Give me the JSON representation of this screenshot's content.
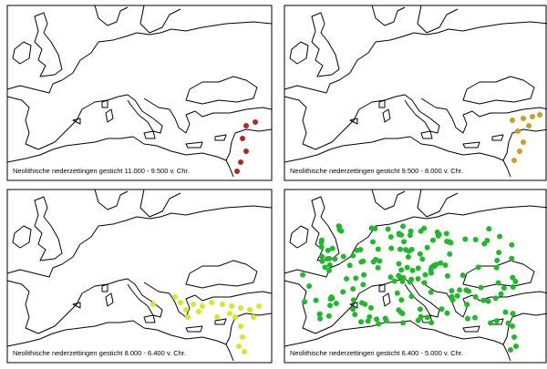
{
  "panels": [
    {
      "caption": "Neolithische nederzettingen gesticht 11.000 - 9.500 v. Chr.",
      "color": "#b0272b"
    },
    {
      "caption": "Neolithische nederzettingen gesticht 9.500 - 8.000 v. Chr.",
      "color": "#c9a020"
    },
    {
      "caption": "Neolithische nederzettingen gesticht 8.000 - 6.400 v. Chr.",
      "color": "#d6e628"
    },
    {
      "caption": "Neolithische nederzettingen gesticht 6.400 - 5.000 v. Chr.",
      "color": "#22b82c"
    }
  ]
}
